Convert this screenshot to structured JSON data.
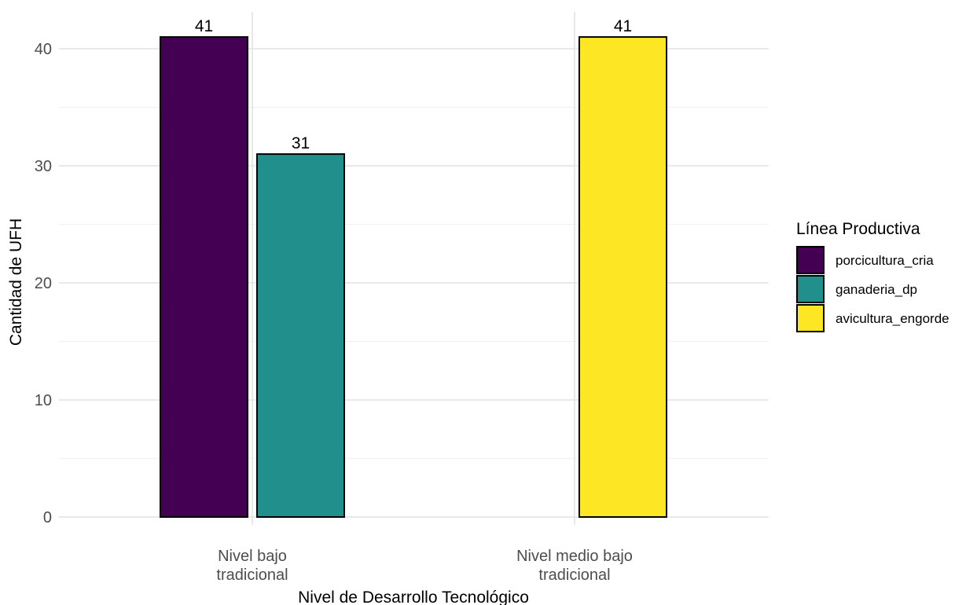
{
  "chart_data": {
    "type": "bar",
    "title": "",
    "xlabel": "Nivel de Desarrollo Tecnológico",
    "ylabel": "Cantidad de UFH",
    "ylim": [
      0,
      41
    ],
    "yticks": [
      0,
      10,
      20,
      30,
      40
    ],
    "grid": true,
    "legend_position": "right",
    "categories": [
      {
        "lines": [
          "Nivel bajo",
          "tradicional"
        ]
      },
      {
        "lines": [
          "Nivel medio bajo",
          "tradicional"
        ]
      }
    ],
    "legend": {
      "title": "Línea Productiva",
      "items": [
        {
          "label": "porcicultura_cria",
          "color": "#440154"
        },
        {
          "label": "ganaderia_dp",
          "color": "#21908C"
        },
        {
          "label": "avicultura_engorde",
          "color": "#FDE725"
        }
      ]
    },
    "bars": [
      {
        "category": 0,
        "slot": 0,
        "series": "porcicultura_cria",
        "value": 41,
        "label": "41",
        "color": "#440154"
      },
      {
        "category": 0,
        "slot": 1,
        "series": "ganaderia_dp",
        "value": 31,
        "label": "31",
        "color": "#21908C"
      },
      {
        "category": 1,
        "slot": 1,
        "series": "avicultura_engorde",
        "value": 41,
        "label": "41",
        "color": "#FDE725"
      }
    ]
  }
}
